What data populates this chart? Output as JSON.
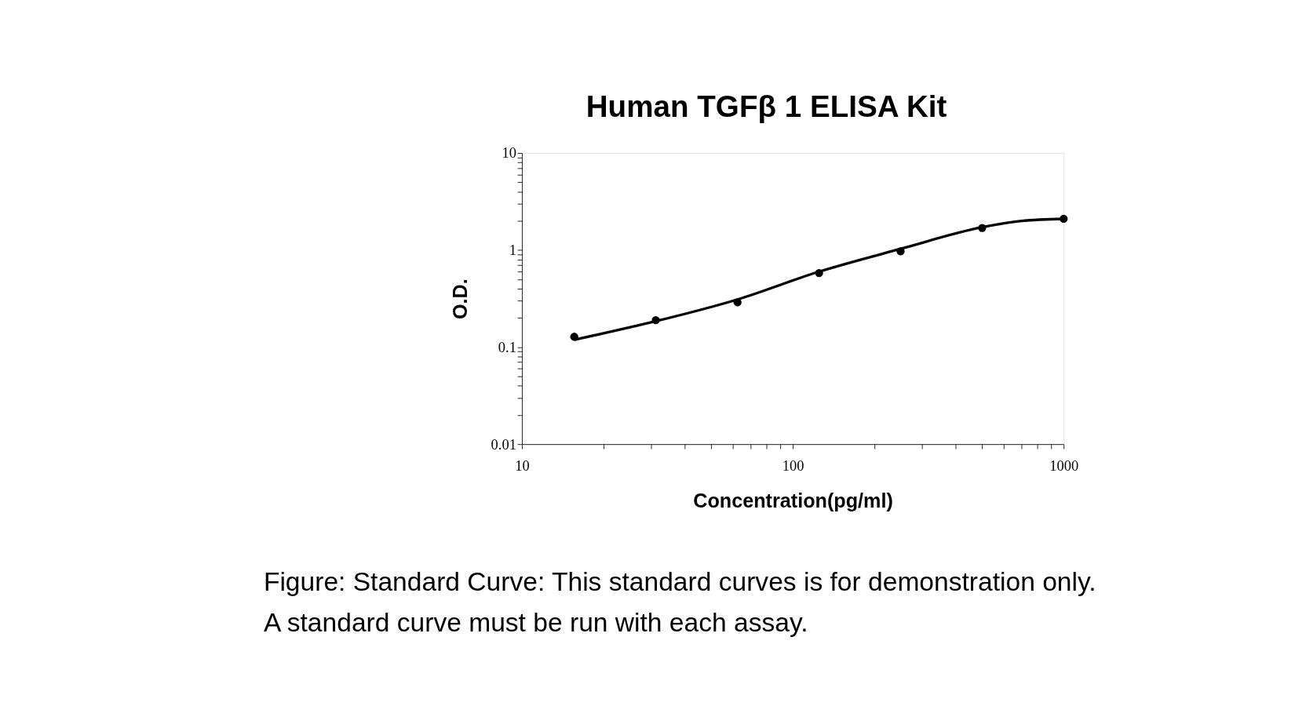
{
  "chart_data": {
    "type": "scatter",
    "title": "Human TGFβ 1 ELISA Kit",
    "xlabel": "Concentration(pg/ml)",
    "ylabel": "O.D.",
    "log": "xy",
    "grid": false,
    "marker": "circle",
    "x": [
      15.6,
      31.2,
      62.5,
      125,
      250,
      500,
      1000
    ],
    "series": [
      {
        "color": "#000000",
        "values": [
          0.128,
          0.19,
          0.29,
          0.58,
          0.97,
          1.69,
          2.1
        ]
      },
      {
        "type": "line",
        "color": "#000000",
        "line_style": "solid",
        "marker": "none",
        "x": [
          15.6,
          31.2,
          62.5,
          125,
          250,
          500,
          700,
          1000
        ],
        "values": [
          0.119,
          0.185,
          0.31,
          0.6,
          1.03,
          1.72,
          2.0,
          2.1
        ]
      }
    ],
    "xlim": [
      10,
      1000
    ],
    "ylim": [
      0.01,
      10
    ],
    "xticks": [
      10,
      {
        "value": 20,
        "label": null
      },
      {
        "value": 30,
        "label": null
      },
      {
        "value": 40,
        "label": null
      },
      {
        "value": 50,
        "label": null
      },
      {
        "value": 60,
        "label": null
      },
      {
        "value": 70,
        "label": null
      },
      {
        "value": 80,
        "label": null
      },
      {
        "value": 90,
        "label": null
      },
      100,
      {
        "value": 200,
        "label": null
      },
      {
        "value": 300,
        "label": null
      },
      {
        "value": 400,
        "label": null
      },
      {
        "value": 500,
        "label": null
      },
      {
        "value": 600,
        "label": null
      },
      {
        "value": 700,
        "label": null
      },
      {
        "value": 800,
        "label": null
      },
      {
        "value": 900,
        "label": null
      },
      1000
    ],
    "yticks": [
      0.01,
      {
        "value": 0.02,
        "label": null
      },
      {
        "value": 0.03,
        "label": null
      },
      {
        "value": 0.04,
        "label": null
      },
      {
        "value": 0.05,
        "label": null
      },
      {
        "value": 0.06,
        "label": null
      },
      {
        "value": 0.07,
        "label": null
      },
      {
        "value": 0.08,
        "label": null
      },
      {
        "value": 0.09,
        "label": null
      },
      0.1,
      {
        "value": 0.2,
        "label": null
      },
      {
        "value": 0.3,
        "label": null
      },
      {
        "value": 0.4,
        "label": null
      },
      {
        "value": 0.5,
        "label": null
      },
      {
        "value": 0.6,
        "label": null
      },
      {
        "value": 0.7,
        "label": null
      },
      {
        "value": 0.8,
        "label": null
      },
      {
        "value": 0.9,
        "label": null
      },
      1,
      {
        "value": 2,
        "label": null
      },
      {
        "value": 3,
        "label": null
      },
      {
        "value": 4,
        "label": null
      },
      {
        "value": 5,
        "label": null
      },
      {
        "value": 6,
        "label": null
      },
      {
        "value": 7,
        "label": null
      },
      {
        "value": 8,
        "label": null
      },
      {
        "value": 9,
        "label": null
      },
      10
    ],
    "annotations": [
      "Figure: Standard Curve: This standard curves is for demonstration only.",
      "A standard curve must be run with each assay."
    ]
  }
}
